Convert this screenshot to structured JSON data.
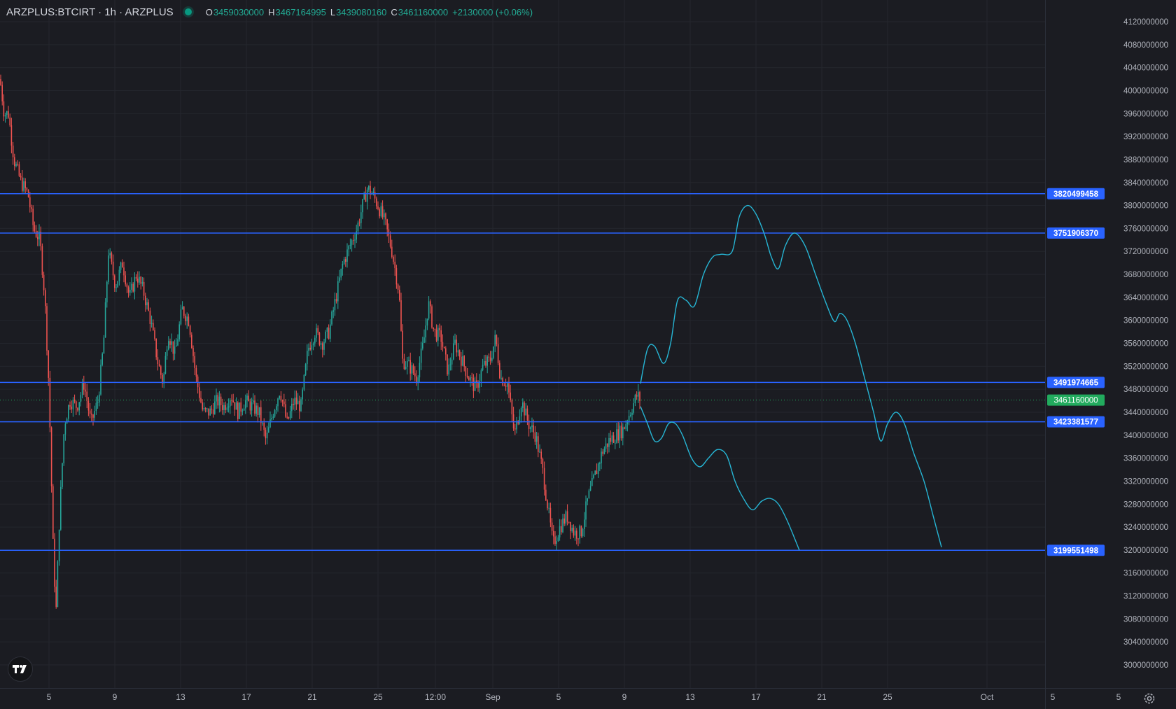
{
  "header": {
    "symbol": "ARZPLUS:BTCIRT · 1h · ARZPLUS",
    "open_key": "O",
    "open": "3459030000",
    "high_key": "H",
    "high": "3467164995",
    "low_key": "L",
    "low": "3439080160",
    "close_key": "C",
    "close": "3461160000",
    "change": "+2130000 (+0.06%)"
  },
  "icons": {
    "logo": "tradingview-logo-icon",
    "settings": "gear-icon",
    "status": "market-status-dot"
  },
  "colors": {
    "background": "#1b1c22",
    "up": "#26a69a",
    "down": "#ef5350",
    "level_line": "#2962ff",
    "projection": "#26b5d4",
    "last_price": "#22ab5e"
  },
  "chart_data": {
    "type": "candlestick",
    "y_axis_ticks": [
      4120000000,
      4080000000,
      4040000000,
      4000000000,
      3960000000,
      3920000000,
      3880000000,
      3840000000,
      3800000000,
      3760000000,
      3720000000,
      3680000000,
      3640000000,
      3600000000,
      3560000000,
      3520000000,
      3480000000,
      3440000000,
      3400000000,
      3360000000,
      3320000000,
      3280000000,
      3240000000,
      3200000000,
      3160000000,
      3120000000,
      3080000000,
      3040000000,
      3000000000
    ],
    "x_axis_labels": [
      "5",
      "9",
      "13",
      "17",
      "21",
      "25",
      "12:00",
      "Sep",
      "5",
      "9",
      "13",
      "17",
      "21",
      "25",
      "Oct",
      "5",
      "5"
    ],
    "ylim": [
      2970000000,
      4140000000
    ],
    "horizontal_levels": [
      3820499458,
      3751906370,
      3491974665,
      3423381577,
      3199551498
    ],
    "last_price": 3461160000,
    "price_path": [
      [
        0,
        4020000000
      ],
      [
        6,
        3960000000
      ],
      [
        12,
        3960000000
      ],
      [
        20,
        3880000000
      ],
      [
        30,
        3840000000
      ],
      [
        40,
        3820000000
      ],
      [
        48,
        3760000000
      ],
      [
        57,
        3740000000
      ],
      [
        64,
        3640000000
      ],
      [
        70,
        3480000000
      ],
      [
        76,
        3200000000
      ],
      [
        80,
        3090000000
      ],
      [
        85,
        3260000000
      ],
      [
        92,
        3420000000
      ],
      [
        100,
        3460000000
      ],
      [
        110,
        3450000000
      ],
      [
        120,
        3490000000
      ],
      [
        130,
        3420000000
      ],
      [
        140,
        3460000000
      ],
      [
        148,
        3560000000
      ],
      [
        155,
        3720000000
      ],
      [
        165,
        3660000000
      ],
      [
        175,
        3700000000
      ],
      [
        185,
        3640000000
      ],
      [
        195,
        3680000000
      ],
      [
        205,
        3650000000
      ],
      [
        215,
        3600000000
      ],
      [
        225,
        3530000000
      ],
      [
        233,
        3490000000
      ],
      [
        240,
        3580000000
      ],
      [
        250,
        3540000000
      ],
      [
        260,
        3620000000
      ],
      [
        270,
        3600000000
      ],
      [
        280,
        3500000000
      ],
      [
        290,
        3440000000
      ],
      [
        300,
        3440000000
      ],
      [
        310,
        3460000000
      ],
      [
        320,
        3450000000
      ],
      [
        330,
        3470000000
      ],
      [
        340,
        3440000000
      ],
      [
        350,
        3460000000
      ],
      [
        360,
        3450000000
      ],
      [
        370,
        3440000000
      ],
      [
        380,
        3390000000
      ],
      [
        390,
        3440000000
      ],
      [
        400,
        3480000000
      ],
      [
        410,
        3420000000
      ],
      [
        420,
        3460000000
      ],
      [
        430,
        3450000000
      ],
      [
        440,
        3550000000
      ],
      [
        450,
        3580000000
      ],
      [
        460,
        3560000000
      ],
      [
        470,
        3580000000
      ],
      [
        480,
        3640000000
      ],
      [
        490,
        3700000000
      ],
      [
        500,
        3730000000
      ],
      [
        510,
        3760000000
      ],
      [
        518,
        3800000000
      ],
      [
        525,
        3830000000
      ],
      [
        532,
        3820000000
      ],
      [
        540,
        3800000000
      ],
      [
        550,
        3770000000
      ],
      [
        560,
        3720000000
      ],
      [
        570,
        3650000000
      ],
      [
        575,
        3530000000
      ],
      [
        585,
        3520000000
      ],
      [
        595,
        3500000000
      ],
      [
        605,
        3560000000
      ],
      [
        612,
        3630000000
      ],
      [
        620,
        3580000000
      ],
      [
        630,
        3570000000
      ],
      [
        640,
        3510000000
      ],
      [
        650,
        3560000000
      ],
      [
        660,
        3530000000
      ],
      [
        670,
        3500000000
      ],
      [
        680,
        3480000000
      ],
      [
        690,
        3520000000
      ],
      [
        700,
        3530000000
      ],
      [
        708,
        3570000000
      ],
      [
        715,
        3500000000
      ],
      [
        725,
        3490000000
      ],
      [
        735,
        3400000000
      ],
      [
        745,
        3460000000
      ],
      [
        755,
        3420000000
      ],
      [
        765,
        3400000000
      ],
      [
        775,
        3340000000
      ],
      [
        782,
        3280000000
      ],
      [
        790,
        3210000000
      ],
      [
        800,
        3240000000
      ],
      [
        810,
        3260000000
      ],
      [
        820,
        3230000000
      ],
      [
        830,
        3230000000
      ],
      [
        840,
        3290000000
      ],
      [
        850,
        3330000000
      ],
      [
        860,
        3370000000
      ],
      [
        870,
        3390000000
      ],
      [
        880,
        3400000000
      ],
      [
        890,
        3410000000
      ],
      [
        900,
        3440000000
      ],
      [
        910,
        3470000000
      ],
      [
        915,
        3461160000
      ]
    ],
    "projection_paths": [
      [
        [
          915,
          3490000000
        ],
        [
          925,
          3550000000
        ],
        [
          935,
          3555000000
        ],
        [
          948,
          3525000000
        ],
        [
          958,
          3560000000
        ],
        [
          968,
          3635000000
        ],
        [
          980,
          3635000000
        ],
        [
          992,
          3625000000
        ],
        [
          1005,
          3680000000
        ],
        [
          1018,
          3710000000
        ],
        [
          1030,
          3715000000
        ],
        [
          1046,
          3720000000
        ],
        [
          1056,
          3780000000
        ],
        [
          1068,
          3800000000
        ],
        [
          1080,
          3785000000
        ],
        [
          1092,
          3750000000
        ],
        [
          1102,
          3710000000
        ],
        [
          1112,
          3690000000
        ],
        [
          1122,
          3730000000
        ],
        [
          1135,
          3752000000
        ],
        [
          1150,
          3730000000
        ],
        [
          1165,
          3680000000
        ],
        [
          1180,
          3630000000
        ],
        [
          1192,
          3598000000
        ],
        [
          1200,
          3612000000
        ],
        [
          1210,
          3600000000
        ],
        [
          1222,
          3560000000
        ],
        [
          1235,
          3500000000
        ],
        [
          1248,
          3440000000
        ],
        [
          1258,
          3390000000
        ],
        [
          1268,
          3420000000
        ],
        [
          1280,
          3440000000
        ],
        [
          1292,
          3420000000
        ],
        [
          1305,
          3370000000
        ],
        [
          1320,
          3320000000
        ],
        [
          1333,
          3260000000
        ],
        [
          1345,
          3205000000
        ]
      ],
      [
        [
          915,
          3450000000
        ],
        [
          925,
          3420000000
        ],
        [
          935,
          3390000000
        ],
        [
          945,
          3395000000
        ],
        [
          955,
          3420000000
        ],
        [
          965,
          3420000000
        ],
        [
          975,
          3400000000
        ],
        [
          988,
          3360000000
        ],
        [
          1000,
          3345000000
        ],
        [
          1012,
          3360000000
        ],
        [
          1025,
          3375000000
        ],
        [
          1038,
          3365000000
        ],
        [
          1050,
          3320000000
        ],
        [
          1062,
          3290000000
        ],
        [
          1075,
          3270000000
        ],
        [
          1088,
          3285000000
        ],
        [
          1100,
          3290000000
        ],
        [
          1112,
          3280000000
        ],
        [
          1125,
          3250000000
        ],
        [
          1142,
          3199551498
        ]
      ]
    ]
  }
}
